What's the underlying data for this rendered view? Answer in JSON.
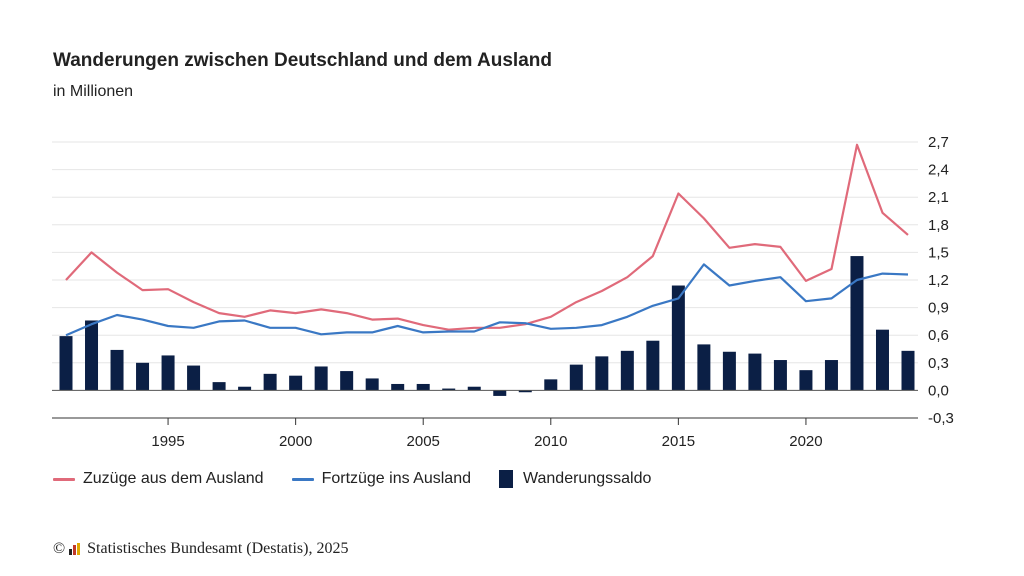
{
  "title": "Wanderungen zwischen Deutschland und dem Ausland",
  "subtitle": "in Millionen",
  "source": {
    "copyright": "©",
    "text": "Statistisches Bundesamt (Destatis), 2025"
  },
  "colors": {
    "zuzuege": "#e06a7a",
    "fortzuege": "#3a78c4",
    "saldo": "#0b1f45",
    "grid": "#e6e6e6",
    "axis": "#333333"
  },
  "chart_data": {
    "type": "bar+line",
    "title": "Wanderungen zwischen Deutschland und dem Ausland",
    "subtitle": "in Millionen",
    "x": [
      1991,
      1992,
      1993,
      1994,
      1995,
      1996,
      1997,
      1998,
      1999,
      2000,
      2001,
      2002,
      2003,
      2004,
      2005,
      2006,
      2007,
      2008,
      2009,
      2010,
      2011,
      2012,
      2013,
      2014,
      2015,
      2016,
      2017,
      2018,
      2019,
      2020,
      2021,
      2022,
      2023,
      2024
    ],
    "x_ticks": [
      1995,
      2000,
      2005,
      2010,
      2015,
      2020
    ],
    "y_ticks": [
      "-0,3",
      "0,0",
      "0,3",
      "0,6",
      "0,9",
      "1,2",
      "1,5",
      "1,8",
      "2,1",
      "2,4",
      "2,7"
    ],
    "ylim": [
      -0.3,
      2.7
    ],
    "y_axis_position": "right",
    "grid": true,
    "legend_position": "bottom-left",
    "series": [
      {
        "name": "Zuzüge aus dem Ausland",
        "type": "line",
        "values": [
          1.2,
          1.5,
          1.28,
          1.09,
          1.1,
          0.96,
          0.84,
          0.8,
          0.87,
          0.84,
          0.88,
          0.84,
          0.77,
          0.78,
          0.71,
          0.66,
          0.68,
          0.68,
          0.72,
          0.8,
          0.96,
          1.08,
          1.23,
          1.46,
          2.14,
          1.87,
          1.55,
          1.59,
          1.56,
          1.19,
          1.32,
          2.67,
          1.93,
          1.69
        ]
      },
      {
        "name": "Fortzüge ins Ausland",
        "type": "line",
        "values": [
          0.6,
          0.72,
          0.82,
          0.77,
          0.7,
          0.68,
          0.75,
          0.76,
          0.68,
          0.68,
          0.61,
          0.63,
          0.63,
          0.7,
          0.63,
          0.64,
          0.64,
          0.74,
          0.73,
          0.67,
          0.68,
          0.71,
          0.8,
          0.92,
          1.0,
          1.37,
          1.14,
          1.19,
          1.23,
          0.97,
          1.0,
          1.2,
          1.27,
          1.26
        ]
      },
      {
        "name": "Wanderungssaldo",
        "type": "bar",
        "values": [
          0.59,
          0.76,
          0.44,
          0.3,
          0.38,
          0.27,
          0.09,
          0.04,
          0.18,
          0.16,
          0.26,
          0.21,
          0.13,
          0.07,
          0.07,
          0.02,
          0.04,
          -0.06,
          -0.02,
          0.12,
          0.28,
          0.37,
          0.43,
          0.54,
          1.14,
          0.5,
          0.42,
          0.4,
          0.33,
          0.22,
          0.33,
          1.46,
          0.66,
          0.43
        ]
      }
    ]
  }
}
